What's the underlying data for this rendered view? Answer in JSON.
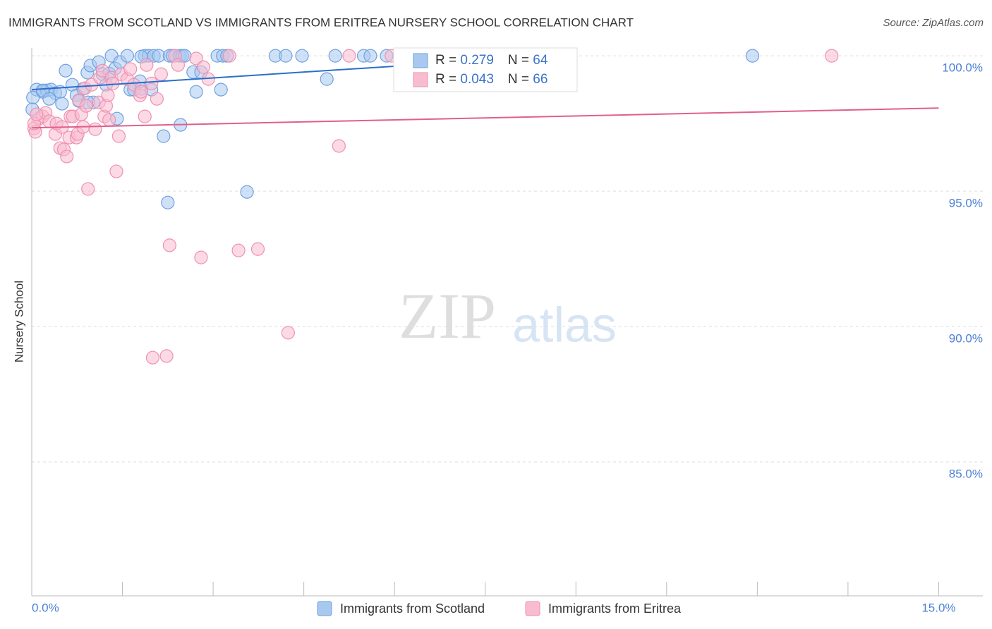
{
  "chart_data": {
    "type": "scatter",
    "title": "IMMIGRANTS FROM SCOTLAND VS IMMIGRANTS FROM ERITREA NURSERY SCHOOL CORRELATION CHART",
    "source": "Source: ZipAtlas.com",
    "y_label": "Nursery School",
    "watermark": [
      "ZIP",
      "atlas"
    ],
    "legend_labels": {
      "r": "R = ",
      "n": "N = "
    },
    "xlim": [
      0,
      15.73
    ],
    "ylim": [
      80.05,
      100.29
    ],
    "xticks": [
      {
        "value": 0,
        "label": "0.0%"
      },
      {
        "value": 15,
        "label": "15.0%"
      }
    ],
    "xtick_marks": [
      1.5,
      3,
      4.5,
      6,
      7.5,
      9,
      10.5,
      12,
      13.5
    ],
    "yticks": [
      {
        "value": 100,
        "label": "100.0%"
      },
      {
        "value": 95,
        "label": "95.0%"
      },
      {
        "value": 90,
        "label": "90.0%"
      },
      {
        "value": 85,
        "label": "85.0%"
      }
    ],
    "grid": true,
    "series": [
      {
        "name": "Immigrants from Scotland",
        "color": "#6fa0e0",
        "fill": "#a8c8f0",
        "line_color": "#2a6fcc",
        "r": 0.279,
        "n": 64,
        "trend": {
          "x": [
            0,
            8.46
          ],
          "y": [
            98.75,
            99.97
          ]
        },
        "x": [
          0.08,
          0.18,
          0.25,
          0.32,
          0.39,
          0.47,
          0.02,
          0.01,
          0.56,
          0.5,
          0.67,
          0.74,
          0.78,
          0.85,
          0.92,
          0.97,
          1.02,
          1.11,
          1.17,
          1.23,
          1.28,
          1.32,
          1.38,
          1.41,
          1.46,
          1.58,
          1.63,
          1.69,
          1.79,
          1.81,
          1.87,
          1.93,
          1.98,
          2.02,
          2.1,
          2.18,
          2.25,
          2.28,
          2.33,
          2.45,
          2.49,
          2.53,
          2.46,
          2.67,
          2.72,
          2.8,
          3.07,
          3.13,
          3.16,
          3.23,
          3.56,
          4.03,
          4.2,
          4.47,
          4.88,
          5.02,
          5.49,
          5.6,
          5.87,
          11.92,
          0.18,
          0.29,
          0.93,
          1.81
        ],
        "values": [
          98.75,
          98.67,
          98.72,
          98.75,
          98.62,
          98.67,
          98.46,
          98.02,
          99.45,
          98.23,
          98.93,
          98.54,
          98.33,
          98.78,
          99.38,
          99.64,
          98.28,
          99.77,
          99.32,
          98.93,
          99.35,
          100,
          99.53,
          97.68,
          99.77,
          100,
          98.75,
          98.75,
          99.06,
          98.78,
          100,
          100,
          98.75,
          100,
          100,
          97.03,
          94.58,
          100,
          100,
          100,
          100,
          100,
          97.45,
          99.4,
          98.67,
          99.4,
          100,
          98.75,
          100,
          100,
          94.97,
          100,
          100,
          100,
          99.14,
          100,
          100,
          100,
          100,
          100,
          98.72,
          98.41,
          98.28,
          99.97
        ]
      },
      {
        "name": "Immigrants from Eritrea",
        "color": "#f090b0",
        "fill": "#f8bcd0",
        "line_color": "#e0608a",
        "r": 0.043,
        "n": 66,
        "trend": {
          "x": [
            0,
            15
          ],
          "y": [
            97.34,
            98.07
          ]
        },
        "x": [
          0.04,
          0.06,
          0.12,
          0.18,
          0.23,
          0.29,
          0.04,
          0.08,
          0.39,
          0.41,
          0.47,
          0.5,
          0.53,
          0.58,
          0.62,
          0.64,
          0.68,
          0.74,
          0.76,
          0.78,
          0.82,
          0.85,
          0.88,
          0.9,
          0.93,
          0.99,
          1.05,
          1.11,
          1.13,
          1.17,
          1.2,
          1.23,
          1.26,
          1.28,
          1.32,
          1.34,
          1.4,
          1.44,
          1.48,
          1.58,
          1.63,
          1.69,
          1.79,
          1.81,
          1.87,
          1.9,
          1.98,
          2.07,
          2.14,
          2.28,
          2.37,
          2.42,
          2.72,
          2.8,
          2.84,
          2.92,
          3.27,
          3.42,
          3.74,
          4.24,
          5.08,
          5.25,
          5.95,
          13.23,
          2.0,
          2.23
        ],
        "values": [
          97.32,
          97.19,
          97.68,
          97.76,
          97.89,
          97.58,
          97.5,
          97.84,
          97.11,
          97.5,
          96.59,
          97.37,
          96.54,
          96.28,
          96.98,
          97.76,
          97.76,
          96.98,
          97.11,
          98.36,
          97.84,
          97.37,
          98.8,
          98.15,
          95.08,
          98.93,
          97.29,
          98.28,
          99.19,
          99.45,
          97.76,
          98.15,
          98.54,
          97.63,
          99.19,
          98.98,
          95.73,
          97.03,
          99.32,
          99.14,
          99.51,
          98.93,
          98.54,
          98.67,
          97.76,
          99.66,
          98.98,
          98.41,
          99.32,
          93.0,
          100,
          99.66,
          99.9,
          92.55,
          99.58,
          99.14,
          100,
          92.81,
          92.86,
          89.77,
          96.67,
          100,
          100,
          100,
          88.85,
          88.91
        ]
      }
    ]
  }
}
